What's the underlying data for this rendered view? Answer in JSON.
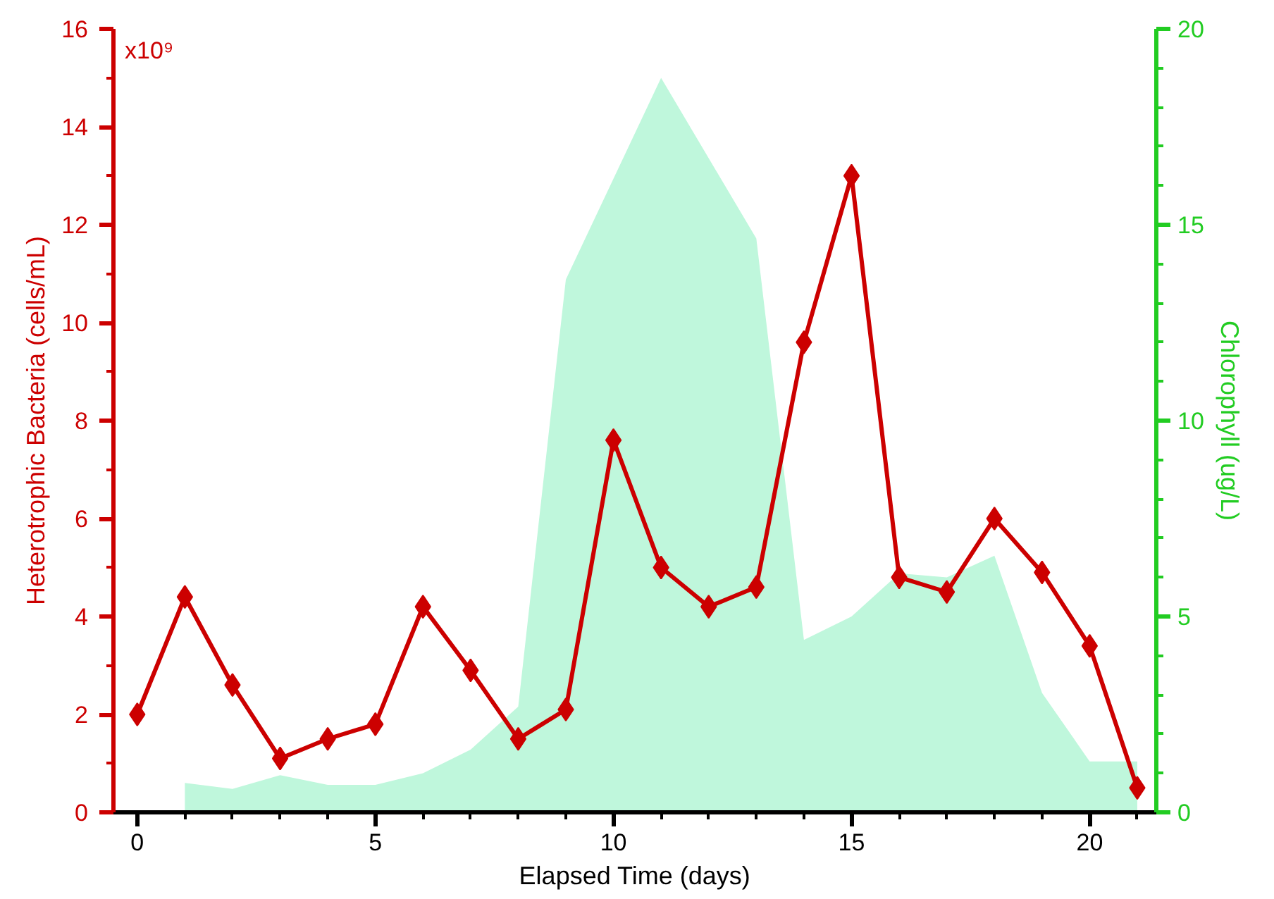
{
  "chart_data": {
    "type": "line",
    "xlabel": "Elapsed Time (days)",
    "ylabel": "Heterotrophic Bacteria (cells/mL)",
    "y2label": "Chlorophyll (ug/L)",
    "xlim": [
      -0.5,
      21.4
    ],
    "xticks": [
      0,
      5,
      10,
      15,
      20
    ],
    "ylim": [
      0,
      16
    ],
    "yticks": [
      0,
      2,
      4,
      6,
      8,
      10,
      12,
      14,
      16
    ],
    "annotations": [
      "x10⁹"
    ],
    "y2lim": [
      0,
      20
    ],
    "y2ticks": [
      0,
      5,
      10,
      15,
      20
    ],
    "grid": false,
    "line_style": "solid",
    "series": [
      {
        "type": "area",
        "axis": "y2",
        "marker": "none",
        "color": "#bff7dc",
        "x": [
          1,
          2,
          3,
          4,
          5,
          6,
          7,
          8,
          9,
          11,
          13,
          14,
          15,
          16,
          17,
          18,
          19,
          20,
          21
        ],
        "values": [
          0.75,
          0.6,
          0.95,
          0.7,
          0.7,
          1.0,
          1.6,
          2.7,
          13.6,
          18.75,
          14.65,
          4.4,
          5.0,
          6.1,
          6.0,
          6.55,
          3.05,
          1.3,
          1.3
        ]
      },
      {
        "axis": "y",
        "marker": "diamond",
        "color": "#cc0000",
        "x": [
          0,
          1,
          2,
          3,
          4,
          5,
          6,
          7,
          8,
          9,
          10,
          11,
          12,
          13,
          14,
          15,
          16,
          17,
          18,
          19,
          20,
          21
        ],
        "values": [
          2.0,
          4.4,
          2.6,
          1.1,
          1.5,
          1.8,
          4.2,
          2.9,
          1.5,
          2.1,
          7.6,
          5.0,
          4.2,
          4.6,
          9.6,
          13.0,
          4.8,
          4.5,
          6.0,
          4.9,
          3.4,
          0.5
        ]
      }
    ]
  }
}
